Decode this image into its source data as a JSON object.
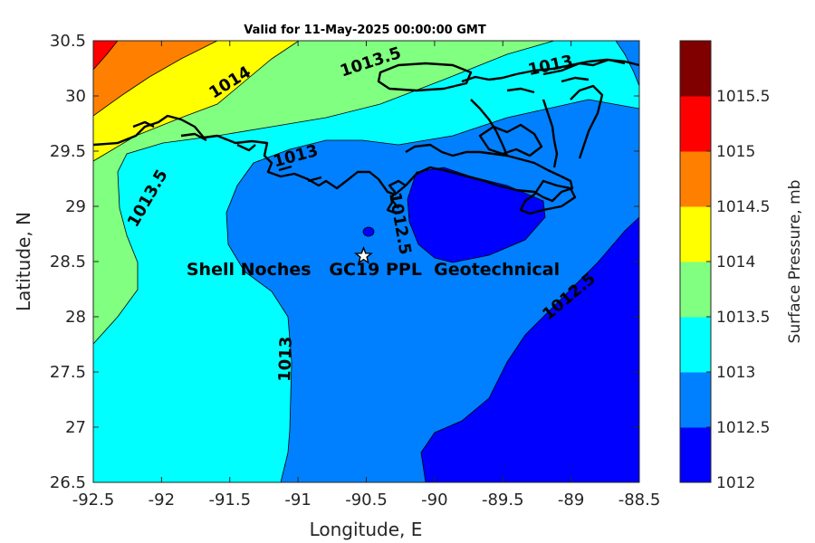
{
  "chart_data": {
    "type": "contour_map",
    "title": "Valid for 11-May-2025 00:00:00 GMT",
    "xlabel": "Longitude, E",
    "ylabel": "Latitude, N",
    "xlim": [
      -92.5,
      -88.5
    ],
    "ylim": [
      26.5,
      30.5
    ],
    "xticks": [
      "-92.5",
      "-92",
      "-91.5",
      "-91",
      "-90.5",
      "-90",
      "-89.5",
      "-89",
      "-88.5"
    ],
    "yticks": [
      "30.5",
      "30",
      "29.5",
      "29",
      "28.5",
      "28",
      "27.5",
      "27",
      "26.5"
    ],
    "contour_labels": [
      "1014",
      "1013.5",
      "1013",
      "1013.5",
      "1013",
      "1012.5",
      "1013",
      "1012.5"
    ],
    "site": {
      "name": "Shell Noches   GC19 PPL  Geotechnical",
      "lon": -90.52,
      "lat": 28.55,
      "marker": "star"
    },
    "colorbar": {
      "label": "Surface Pressure, mb",
      "ticks": [
        "1015.5",
        "1015",
        "1014.5",
        "1014",
        "1013.5",
        "1013",
        "1012.5",
        "1012"
      ],
      "levels": [
        {
          "range": [
            1012.0,
            1012.5
          ],
          "color": "#0000ff"
        },
        {
          "range": [
            1012.5,
            1013.0
          ],
          "color": "#0080ff"
        },
        {
          "range": [
            1013.0,
            1013.5
          ],
          "color": "#00ffff"
        },
        {
          "range": [
            1013.5,
            1014.0
          ],
          "color": "#80ff80"
        },
        {
          "range": [
            1014.0,
            1014.5
          ],
          "color": "#ffff00"
        },
        {
          "range": [
            1014.5,
            1015.0
          ],
          "color": "#ff8000"
        },
        {
          "range": [
            1015.0,
            1015.5
          ],
          "color": "#ff0000"
        },
        {
          "range": [
            1015.5,
            1016.0
          ],
          "color": "#800000"
        }
      ]
    },
    "coastline_color": "#000000"
  }
}
